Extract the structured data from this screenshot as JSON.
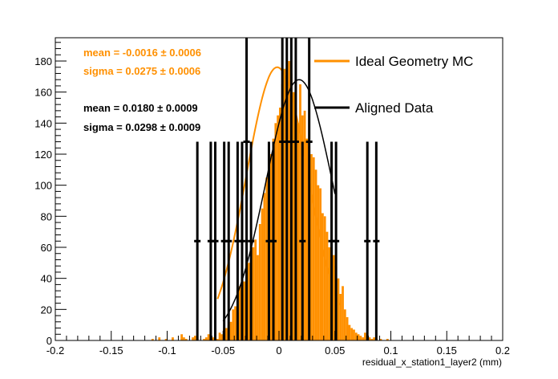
{
  "chart_data": {
    "type": "histogram",
    "xlabel": "residual_x_station1_layer2 (mm)",
    "ylabel": "",
    "xlim": [
      -0.2,
      0.2
    ],
    "ylim": [
      0,
      195
    ],
    "x_ticks": [
      "-0.2",
      "-0.15",
      "-0.1",
      "-0.05",
      "0",
      "0.05",
      "0.1",
      "0.15",
      "0.2"
    ],
    "x_tick_values": [
      -0.2,
      -0.15,
      -0.1,
      -0.05,
      0,
      0.05,
      0.1,
      0.15,
      0.2
    ],
    "y_ticks": [
      "0",
      "20",
      "40",
      "60",
      "80",
      "100",
      "120",
      "140",
      "160",
      "180"
    ],
    "y_tick_values": [
      0,
      20,
      40,
      60,
      80,
      100,
      120,
      140,
      160,
      180
    ],
    "grid": false,
    "legend_position": "top-right",
    "colors": {
      "mc": "#ff9000",
      "data": "#000000"
    },
    "mc_histogram": {
      "name": "Ideal Geometry MC",
      "bin_width": 0.002,
      "bin_start": -0.2,
      "values": [
        0,
        0,
        0,
        0,
        0,
        0,
        0,
        0,
        0,
        0,
        0,
        0,
        0,
        0,
        0,
        0,
        0,
        0,
        0,
        0,
        0,
        0,
        0,
        0,
        0,
        0,
        0,
        0,
        0,
        0,
        0,
        0,
        0,
        0,
        0,
        0,
        0,
        0,
        0,
        0,
        0,
        0,
        0,
        1,
        0,
        0,
        2,
        0,
        0,
        1,
        0,
        0,
        2,
        0,
        0,
        0,
        4,
        2,
        1,
        0,
        0,
        2,
        3,
        1,
        0,
        0,
        1,
        2,
        4,
        1,
        2,
        3,
        1,
        5,
        4,
        7,
        8,
        10,
        12,
        20,
        22,
        18,
        35,
        30,
        38,
        45,
        50,
        40,
        60,
        65,
        55,
        75,
        85,
        95,
        105,
        110,
        120,
        130,
        140,
        145,
        150,
        165,
        175,
        170,
        180,
        172,
        160,
        150,
        140,
        165,
        145,
        148,
        130,
        125,
        120,
        118,
        110,
        100,
        98,
        82,
        80,
        70,
        60,
        65,
        55,
        48,
        40,
        30,
        35,
        20,
        15,
        10,
        8,
        7,
        5,
        4,
        3,
        2,
        5,
        3,
        2,
        1,
        2,
        1,
        0,
        1,
        0,
        0,
        1,
        0,
        0,
        0,
        0,
        0,
        0,
        0,
        0,
        0,
        0,
        0,
        0,
        0,
        0,
        0,
        0,
        0,
        0,
        0,
        0,
        0,
        0,
        0,
        0,
        0,
        0,
        0,
        0,
        0,
        0,
        0,
        0,
        0,
        0,
        0,
        0,
        0,
        0,
        0,
        0,
        0,
        0,
        0,
        0,
        0,
        0,
        0,
        0,
        0,
        0,
        0
      ],
      "fit": {
        "mean": -0.0016,
        "sigma": 0.0275,
        "peak": 176
      },
      "mean_text": "mean = -0.0016 ± 0.0006",
      "sigma_text": "sigma = 0.0275 ± 0.0006"
    },
    "data_histogram": {
      "name": "Aligned Data",
      "points": [
        {
          "x": -0.073,
          "y": 64,
          "yerr": 64
        },
        {
          "x": -0.061,
          "y": 64,
          "yerr": 64
        },
        {
          "x": -0.057,
          "y": 64,
          "yerr": 64
        },
        {
          "x": -0.049,
          "y": 64,
          "yerr": 64
        },
        {
          "x": -0.045,
          "y": 64,
          "yerr": 64
        },
        {
          "x": -0.037,
          "y": 64,
          "yerr": 64
        },
        {
          "x": -0.033,
          "y": 64,
          "yerr": 64
        },
        {
          "x": -0.029,
          "y": 128,
          "yerr": 128
        },
        {
          "x": -0.025,
          "y": 64,
          "yerr": 64
        },
        {
          "x": -0.009,
          "y": 64,
          "yerr": 64
        },
        {
          "x": -0.005,
          "y": 64,
          "yerr": 64
        },
        {
          "x": 0.003,
          "y": 128,
          "yerr": 128
        },
        {
          "x": 0.007,
          "y": 128,
          "yerr": 128
        },
        {
          "x": 0.011,
          "y": 128,
          "yerr": 128
        },
        {
          "x": 0.015,
          "y": 128,
          "yerr": 128
        },
        {
          "x": 0.021,
          "y": 64,
          "yerr": 64
        },
        {
          "x": 0.027,
          "y": 128,
          "yerr": 128
        },
        {
          "x": 0.047,
          "y": 64,
          "yerr": 64
        },
        {
          "x": 0.051,
          "y": 64,
          "yerr": 64
        },
        {
          "x": 0.079,
          "y": 64,
          "yerr": 64
        },
        {
          "x": 0.087,
          "y": 64,
          "yerr": 64
        }
      ],
      "fit": {
        "mean": 0.018,
        "sigma": 0.0298,
        "peak": 168,
        "range": [
          -0.05,
          0.05
        ]
      },
      "mean_text": "mean = 0.0180 ± 0.0009",
      "sigma_text": "sigma = 0.0298 ± 0.0009"
    }
  }
}
